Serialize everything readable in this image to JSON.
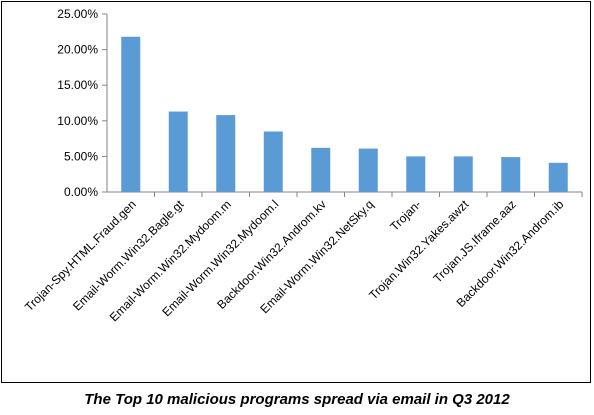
{
  "chart_data": {
    "type": "bar",
    "title": "",
    "xlabel": "",
    "ylabel": "",
    "ylim": [
      0,
      25
    ],
    "yticks": [
      "0.00%",
      "5.00%",
      "10.00%",
      "15.00%",
      "20.00%",
      "25.00%"
    ],
    "grid": false,
    "legend": "none",
    "bar_color": "#5b9bd5",
    "categories": [
      "Trojan-Spy.HTML.Fraud.gen",
      "Email-Worm.Win32.Bagle.gt",
      "Email-Worm.Win32.Mydoom.m",
      "Email-Worm.Win32.Mydoom.l",
      "Backdoor.Win32.Androm.kv",
      "Email-Worm.Win32.NetSky.q",
      "Trojan-",
      "Trojan.Win32.Yakes.awzt",
      "Trojan.JS.Iframe.aaz",
      "Backdoor.Win32.Androm.ib"
    ],
    "values": [
      21.8,
      11.3,
      10.8,
      8.5,
      6.2,
      6.1,
      5.0,
      5.0,
      4.9,
      4.1
    ]
  },
  "caption": "The Top 10 malicious programs spread via email in Q3 2012"
}
